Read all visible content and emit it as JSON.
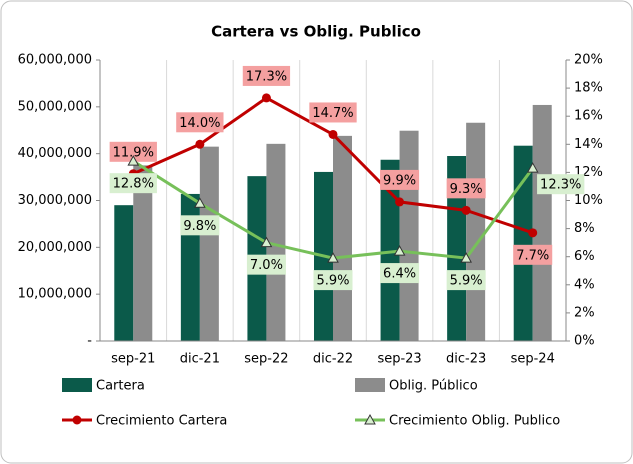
{
  "chart_data": {
    "type": "bar_line",
    "title": "Cartera vs Oblig. Publico",
    "categories": [
      "sep-21",
      "dic-21",
      "sep-22",
      "dic-22",
      "sep-23",
      "dic-23",
      "sep-24"
    ],
    "series": [
      {
        "name": "Cartera",
        "type": "bar",
        "color": "#0b5a4a",
        "values": [
          29000000,
          31400000,
          35200000,
          36100000,
          38700000,
          39500000,
          41700000
        ]
      },
      {
        "name": "Oblig. Público",
        "type": "bar",
        "color": "#8c8c8c",
        "values": [
          37500000,
          41500000,
          42100000,
          43800000,
          44900000,
          46600000,
          50400000
        ]
      },
      {
        "name": "Crecimiento Cartera",
        "type": "line",
        "axis": "y2",
        "color": "#c00000",
        "marker": "circle",
        "label_bg": "#f4a0a0",
        "values": [
          11.9,
          14.0,
          17.3,
          14.7,
          9.9,
          9.3,
          7.7
        ],
        "value_labels": [
          "11.9%",
          "14.0%",
          "17.3%",
          "14.7%",
          "9.9%",
          "9.3%",
          "7.7%"
        ]
      },
      {
        "name": "Crecimiento Oblig. Publico",
        "type": "line",
        "axis": "y2",
        "color": "#77c05a",
        "marker": "triangle",
        "label_bg": "#d8efd0",
        "values": [
          12.8,
          9.8,
          7.0,
          5.9,
          6.4,
          5.9,
          12.3
        ],
        "value_labels": [
          "12.8%",
          "9.8%",
          "7.0%",
          "5.9%",
          "6.4%",
          "5.9%",
          "12.3%"
        ]
      }
    ],
    "ylim": [
      0,
      60000000
    ],
    "yticks": [
      {
        "value": 0,
        "label": "-"
      },
      {
        "value": 10000000,
        "label": "10,000,000"
      },
      {
        "value": 20000000,
        "label": "20,000,000"
      },
      {
        "value": 30000000,
        "label": "30,000,000"
      },
      {
        "value": 40000000,
        "label": "40,000,000"
      },
      {
        "value": 50000000,
        "label": "50,000,000"
      },
      {
        "value": 60000000,
        "label": "60,000,000"
      }
    ],
    "y2lim": [
      0,
      20
    ],
    "y2ticks": [
      {
        "value": 0,
        "label": "0%"
      },
      {
        "value": 2,
        "label": "2%"
      },
      {
        "value": 4,
        "label": "4%"
      },
      {
        "value": 6,
        "label": "6%"
      },
      {
        "value": 8,
        "label": "8%"
      },
      {
        "value": 10,
        "label": "10%"
      },
      {
        "value": 12,
        "label": "12%"
      },
      {
        "value": 14,
        "label": "14%"
      },
      {
        "value": 16,
        "label": "16%"
      },
      {
        "value": 18,
        "label": "18%"
      },
      {
        "value": 20,
        "label": "20%"
      }
    ],
    "legend": "bottom"
  }
}
